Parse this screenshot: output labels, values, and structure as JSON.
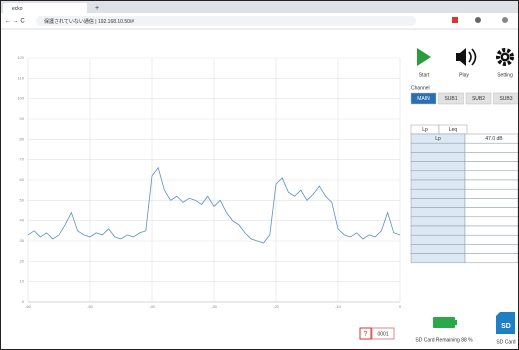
{
  "browser": {
    "tab_title": "ecko",
    "url": "保護されていない通信 | 192.168.10.50/#"
  },
  "chart_data": {
    "type": "line",
    "x": [
      -60,
      -59,
      -58,
      -57,
      -56,
      -55,
      -54,
      -53,
      -52,
      -51,
      -50,
      -49,
      -48,
      -47,
      -46,
      -45,
      -44,
      -43,
      -42,
      -41,
      -40,
      -39,
      -38,
      -37,
      -36,
      -35,
      -34,
      -33,
      -32,
      -31,
      -30,
      -29,
      -28,
      -27,
      -26,
      -25,
      -24,
      -23,
      -22,
      -21,
      -20,
      -19,
      -18,
      -17,
      -16,
      -15,
      -14,
      -13,
      -12,
      -11,
      -10,
      -9,
      -8,
      -7,
      -6,
      -5,
      -4,
      -3,
      -2,
      -1,
      0
    ],
    "values": [
      33,
      35,
      32,
      34,
      31,
      33,
      38,
      44,
      35,
      33,
      32,
      34,
      33,
      36,
      32,
      31,
      33,
      32,
      34,
      35,
      62,
      66,
      55,
      50,
      52,
      49,
      51,
      50,
      48,
      52,
      47,
      50,
      44,
      40,
      38,
      34,
      31,
      30,
      29,
      33,
      58,
      61,
      54,
      52,
      55,
      50,
      53,
      57,
      52,
      49,
      36,
      33,
      32,
      34,
      31,
      33,
      32,
      35,
      44,
      34,
      33
    ],
    "color": "#5b8fc9",
    "xlim": [
      -60,
      0
    ],
    "xticks": [
      -60,
      -50,
      -40,
      -30,
      -20,
      -10,
      0
    ],
    "ylim": [
      0,
      120
    ],
    "yticks": [
      0,
      10,
      20,
      30,
      40,
      50,
      60,
      70,
      80,
      90,
      100,
      110,
      120
    ],
    "grid": true
  },
  "controls": {
    "start": "Start",
    "play": "Play",
    "setting": "Setting",
    "channel_label": "Channel",
    "channels": [
      "MAIN",
      "SUB1",
      "SUB2",
      "SUB3"
    ]
  },
  "table": {
    "tabs": [
      "Lp",
      "Leq"
    ],
    "header": [
      "Lp",
      "47.0 dB"
    ]
  },
  "status": {
    "error_icon": "?",
    "error_code": "0001",
    "sd_remaining": "SD Card Remaining 88 %",
    "sd_icon": "SD",
    "sd_label": "SD Card"
  }
}
